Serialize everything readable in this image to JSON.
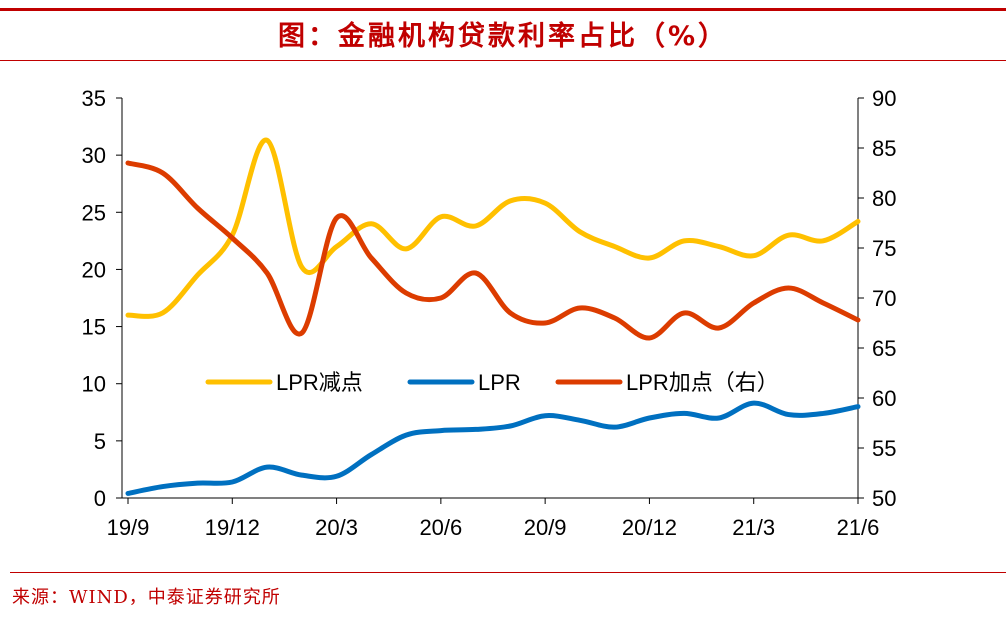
{
  "title": "图：金融机构贷款利率占比（%）",
  "source": "来源：WIND，中泰证券研究所",
  "colors": {
    "accent": "#c00000",
    "series_yellow": "#ffc000",
    "series_blue": "#0070c0",
    "series_red": "#dc3c00"
  },
  "chart_data": {
    "type": "line",
    "title": "图：金融机构贷款利率占比（%）",
    "x_tick_labels": [
      "19/9",
      "19/12",
      "20/3",
      "20/6",
      "20/9",
      "20/12",
      "21/3",
      "21/6"
    ],
    "months": [
      "19/9",
      "19/10",
      "19/11",
      "19/12",
      "20/1",
      "20/2",
      "20/3",
      "20/4",
      "20/5",
      "20/6",
      "20/7",
      "20/8",
      "20/9",
      "20/10",
      "20/11",
      "20/12",
      "21/1",
      "21/2",
      "21/3",
      "21/4",
      "21/5",
      "21/6"
    ],
    "y_left": {
      "min": 0,
      "max": 35,
      "ticks": [
        0,
        5,
        10,
        15,
        20,
        25,
        30,
        35
      ]
    },
    "y_right": {
      "min": 50,
      "max": 90,
      "ticks": [
        50,
        55,
        60,
        65,
        70,
        75,
        80,
        85,
        90
      ]
    },
    "legend_position": "center",
    "series": [
      {
        "name": "LPR减点",
        "axis": "left",
        "color": "#ffc000",
        "values": [
          16.0,
          16.2,
          19.5,
          23.0,
          31.3,
          20.2,
          22.0,
          24.0,
          21.8,
          24.6,
          23.8,
          26.0,
          25.8,
          23.3,
          22.0,
          21.0,
          22.5,
          22.0,
          21.2,
          23.0,
          22.5,
          24.2
        ]
      },
      {
        "name": "LPR",
        "axis": "left",
        "color": "#0070c0",
        "values": [
          0.4,
          1.0,
          1.3,
          1.4,
          2.7,
          2.0,
          1.9,
          3.8,
          5.5,
          5.9,
          6.0,
          6.3,
          7.2,
          6.8,
          6.2,
          7.0,
          7.4,
          7.0,
          8.3,
          7.3,
          7.4,
          8.0
        ]
      },
      {
        "name": "LPR加点（右）",
        "axis": "right",
        "color": "#dc3c00",
        "values": [
          83.5,
          82.5,
          79.0,
          76.0,
          72.5,
          66.5,
          78.0,
          74.0,
          70.5,
          70.0,
          72.5,
          68.5,
          67.5,
          69.0,
          68.0,
          66.0,
          68.5,
          67.0,
          69.5,
          71.0,
          69.5,
          67.8
        ]
      }
    ]
  }
}
